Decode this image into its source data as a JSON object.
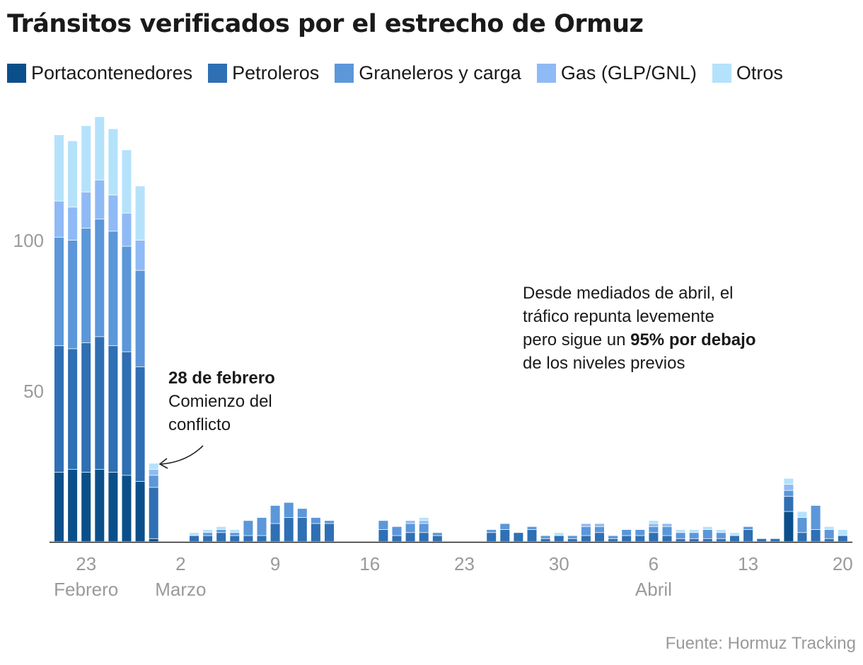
{
  "title": "Tránsitos verificados por el estrecho de Ormuz",
  "legend": [
    {
      "label": "Portacontenedores",
      "color": "#0b4f8a"
    },
    {
      "label": "Petroleros",
      "color": "#2f6fb3"
    },
    {
      "label": "Graneleros y carga",
      "color": "#5b97d9"
    },
    {
      "label": "Gas (GLP/GNL)",
      "color": "#8fbaf5"
    },
    {
      "label": "Otros",
      "color": "#b5e2fb"
    }
  ],
  "annotations": {
    "conflict_bold": "28 de febrero",
    "conflict_text_1": "Comienzo del",
    "conflict_text_2": "conflicto",
    "april_line1": "Desde mediados de abril, el",
    "april_line2": "tráfico repunta levemente",
    "april_line3_a": "pero sigue un ",
    "april_line3_bold": "95% por debajo",
    "april_line4": "de los niveles previos"
  },
  "source": "Fuente: Hormuz Tracking",
  "chart_data": {
    "type": "bar",
    "stacked": true,
    "title": "Tránsitos verificados por el estrecho de Ormuz",
    "xlabel": "",
    "ylabel": "",
    "ylim": [
      0,
      140
    ],
    "yticks": [
      50,
      100
    ],
    "x_ticks": [
      {
        "label": "23",
        "sub": "Febrero",
        "date": "2026-02-23"
      },
      {
        "label": "2",
        "sub": "Marzo",
        "date": "2026-03-02"
      },
      {
        "label": "9",
        "sub": "",
        "date": "2026-03-09"
      },
      {
        "label": "16",
        "sub": "",
        "date": "2026-03-16"
      },
      {
        "label": "23",
        "sub": "",
        "date": "2026-03-23"
      },
      {
        "label": "30",
        "sub": "",
        "date": "2026-03-30"
      },
      {
        "label": "6",
        "sub": "Abril",
        "date": "2026-04-06"
      },
      {
        "label": "13",
        "sub": "",
        "date": "2026-04-13"
      },
      {
        "label": "20",
        "sub": "",
        "date": "2026-04-20"
      }
    ],
    "categories": [
      "2026-02-21",
      "2026-02-22",
      "2026-02-23",
      "2026-02-24",
      "2026-02-25",
      "2026-02-26",
      "2026-02-27",
      "2026-02-28",
      "2026-03-01",
      "2026-03-02",
      "2026-03-03",
      "2026-03-04",
      "2026-03-05",
      "2026-03-06",
      "2026-03-07",
      "2026-03-08",
      "2026-03-09",
      "2026-03-10",
      "2026-03-11",
      "2026-03-12",
      "2026-03-13",
      "2026-03-14",
      "2026-03-15",
      "2026-03-16",
      "2026-03-17",
      "2026-03-18",
      "2026-03-19",
      "2026-03-20",
      "2026-03-21",
      "2026-03-22",
      "2026-03-23",
      "2026-03-24",
      "2026-03-25",
      "2026-03-26",
      "2026-03-27",
      "2026-03-28",
      "2026-03-29",
      "2026-03-30",
      "2026-03-31",
      "2026-04-01",
      "2026-04-02",
      "2026-04-03",
      "2026-04-04",
      "2026-04-05",
      "2026-04-06",
      "2026-04-07",
      "2026-04-08",
      "2026-04-09",
      "2026-04-10",
      "2026-04-11",
      "2026-04-12",
      "2026-04-13",
      "2026-04-14",
      "2026-04-15",
      "2026-04-16",
      "2026-04-17",
      "2026-04-18",
      "2026-04-19",
      "2026-04-20"
    ],
    "series": [
      {
        "name": "Portacontenedores",
        "color": "#0b4f8a",
        "values": [
          23,
          24,
          23,
          24,
          23,
          22,
          20,
          1,
          0,
          0,
          0,
          0,
          0,
          0,
          0,
          0,
          0,
          0,
          0,
          0,
          0,
          0,
          0,
          0,
          0,
          0,
          0,
          0,
          0,
          0,
          0,
          0,
          0,
          0,
          0,
          0,
          0,
          0,
          0,
          0,
          0,
          0,
          0,
          0,
          0,
          0,
          0,
          0,
          0,
          0,
          0,
          0,
          0,
          0,
          10,
          0,
          0,
          0,
          0
        ]
      },
      {
        "name": "Petroleros",
        "color": "#2f6fb3",
        "values": [
          42,
          40,
          43,
          44,
          42,
          41,
          38,
          17,
          0,
          0,
          2,
          2,
          3,
          2,
          2,
          2,
          6,
          8,
          8,
          6,
          6,
          0,
          0,
          0,
          4,
          2,
          3,
          3,
          2,
          0,
          0,
          0,
          3,
          4,
          3,
          4,
          1,
          2,
          1,
          2,
          3,
          1,
          2,
          2,
          3,
          2,
          1,
          1,
          1,
          1,
          2,
          4,
          1,
          1,
          5,
          3,
          4,
          1,
          2
        ]
      },
      {
        "name": "Graneleros y carga",
        "color": "#5b97d9",
        "values": [
          36,
          36,
          38,
          39,
          38,
          35,
          32,
          4,
          0,
          0,
          0,
          1,
          1,
          1,
          5,
          6,
          6,
          5,
          3,
          2,
          1,
          0,
          0,
          0,
          3,
          3,
          3,
          3,
          1,
          0,
          0,
          0,
          1,
          2,
          0,
          1,
          1,
          0,
          1,
          3,
          2,
          1,
          2,
          2,
          2,
          3,
          2,
          2,
          3,
          2,
          0,
          1,
          0,
          0,
          2,
          5,
          8,
          3,
          0
        ]
      },
      {
        "name": "Gas (GLP/GNL)",
        "color": "#8fbaf5",
        "values": [
          12,
          11,
          12,
          13,
          12,
          11,
          10,
          2,
          0,
          0,
          0,
          0,
          0,
          0,
          0,
          0,
          0,
          0,
          0,
          0,
          0,
          0,
          0,
          0,
          0,
          0,
          1,
          1,
          0,
          0,
          0,
          0,
          0,
          0,
          0,
          0,
          0,
          0,
          0,
          1,
          1,
          0,
          0,
          0,
          1,
          1,
          0,
          0,
          0,
          0,
          0,
          0,
          0,
          0,
          2,
          0,
          0,
          0,
          0
        ]
      },
      {
        "name": "Otros",
        "color": "#b5e2fb",
        "values": [
          22,
          22,
          22,
          21,
          22,
          21,
          18,
          2,
          0,
          0,
          1,
          1,
          1,
          1,
          0,
          0,
          0,
          0,
          0,
          0,
          0,
          0,
          0,
          0,
          0,
          0,
          0,
          1,
          0,
          0,
          0,
          0,
          0,
          0,
          0,
          0,
          0,
          1,
          0,
          0,
          0,
          0,
          0,
          0,
          1,
          0,
          1,
          1,
          1,
          1,
          1,
          0,
          0,
          0,
          2,
          2,
          0,
          1,
          2
        ]
      }
    ]
  }
}
